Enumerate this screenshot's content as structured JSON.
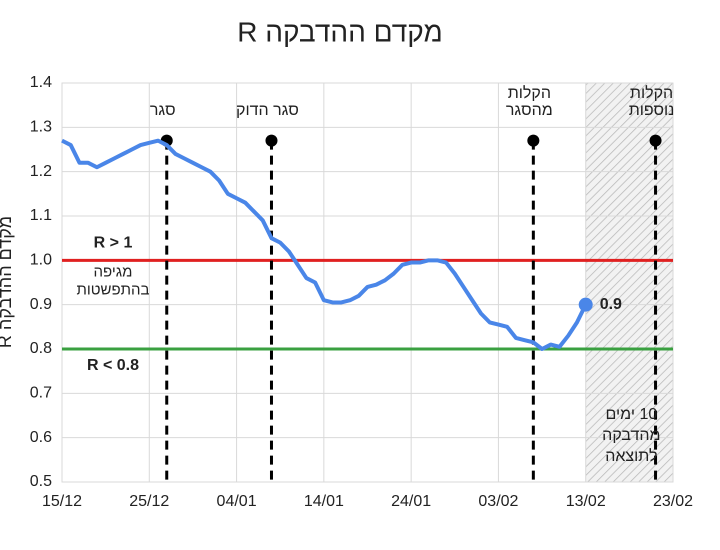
{
  "chart_data": {
    "type": "line",
    "title": "מקדם ההדבקה R",
    "y_label": "מקדם ההדבקה R",
    "categories": [
      "15/12",
      null,
      null,
      null,
      null,
      null,
      null,
      null,
      null,
      null,
      "25/12",
      null,
      null,
      null,
      null,
      null,
      null,
      null,
      null,
      null,
      "04/01",
      null,
      null,
      null,
      null,
      null,
      null,
      null,
      null,
      null,
      "14/01",
      null,
      null,
      null,
      null,
      null,
      null,
      null,
      null,
      null,
      "24/01",
      null,
      null,
      null,
      null,
      null,
      null,
      null,
      null,
      null,
      "03/02",
      null,
      null,
      null,
      null,
      null,
      null,
      null,
      null,
      null,
      "13/02",
      null,
      null,
      null,
      null,
      null,
      null,
      null,
      null,
      null,
      "23/02"
    ],
    "series": [
      {
        "name": "R",
        "color": "#4a86e8",
        "values": [
          1.27,
          1.26,
          1.22,
          1.22,
          1.21,
          1.22,
          1.23,
          1.24,
          1.25,
          1.26,
          1.265,
          1.27,
          1.26,
          1.24,
          1.23,
          1.22,
          1.21,
          1.2,
          1.18,
          1.15,
          1.14,
          1.13,
          1.11,
          1.09,
          1.05,
          1.04,
          1.02,
          0.99,
          0.96,
          0.95,
          0.91,
          0.905,
          0.905,
          0.91,
          0.92,
          0.94,
          0.945,
          0.955,
          0.97,
          0.99,
          0.995,
          0.995,
          1.0,
          1.0,
          0.995,
          0.97,
          0.94,
          0.91,
          0.88,
          0.86,
          0.855,
          0.85,
          0.825,
          0.82,
          0.815,
          0.8,
          0.81,
          0.805,
          0.83,
          0.86,
          0.9,
          null,
          null,
          null,
          null,
          null,
          null,
          null,
          null,
          null,
          null
        ]
      }
    ],
    "ylim": [
      0.5,
      1.4
    ],
    "yticks": [
      0.5,
      0.6,
      0.7,
      0.8,
      0.9,
      {
        "value": 1,
        "label": "1.0"
      },
      1.1,
      1.2,
      1.3,
      1.4
    ],
    "grid": true,
    "hlines": [
      {
        "y": 1,
        "color": "#e02020",
        "text": [
          "R > 1",
          "מגיפה",
          "בהתפשטות"
        ]
      },
      {
        "y": 0.8,
        "color": "#3aa040",
        "text": [
          "R < 0.8"
        ]
      }
    ],
    "events": [
      {
        "x": 12,
        "y": 1.27,
        "text": [
          "סגר"
        ]
      },
      {
        "x": 24,
        "y": 1.27,
        "text": [
          "סגר הדוק"
        ]
      },
      {
        "x": 54,
        "y": 1.27,
        "text": [
          "הקלות",
          "מהסגר"
        ]
      },
      {
        "x": 68,
        "y": 1.27,
        "text": [
          "הקלות",
          "נוספות"
        ]
      }
    ],
    "shaded": {
      "from": 60,
      "to": 70,
      "text": [
        "10 ימים",
        "מהדבקה",
        "לתוצאה"
      ]
    }
  }
}
